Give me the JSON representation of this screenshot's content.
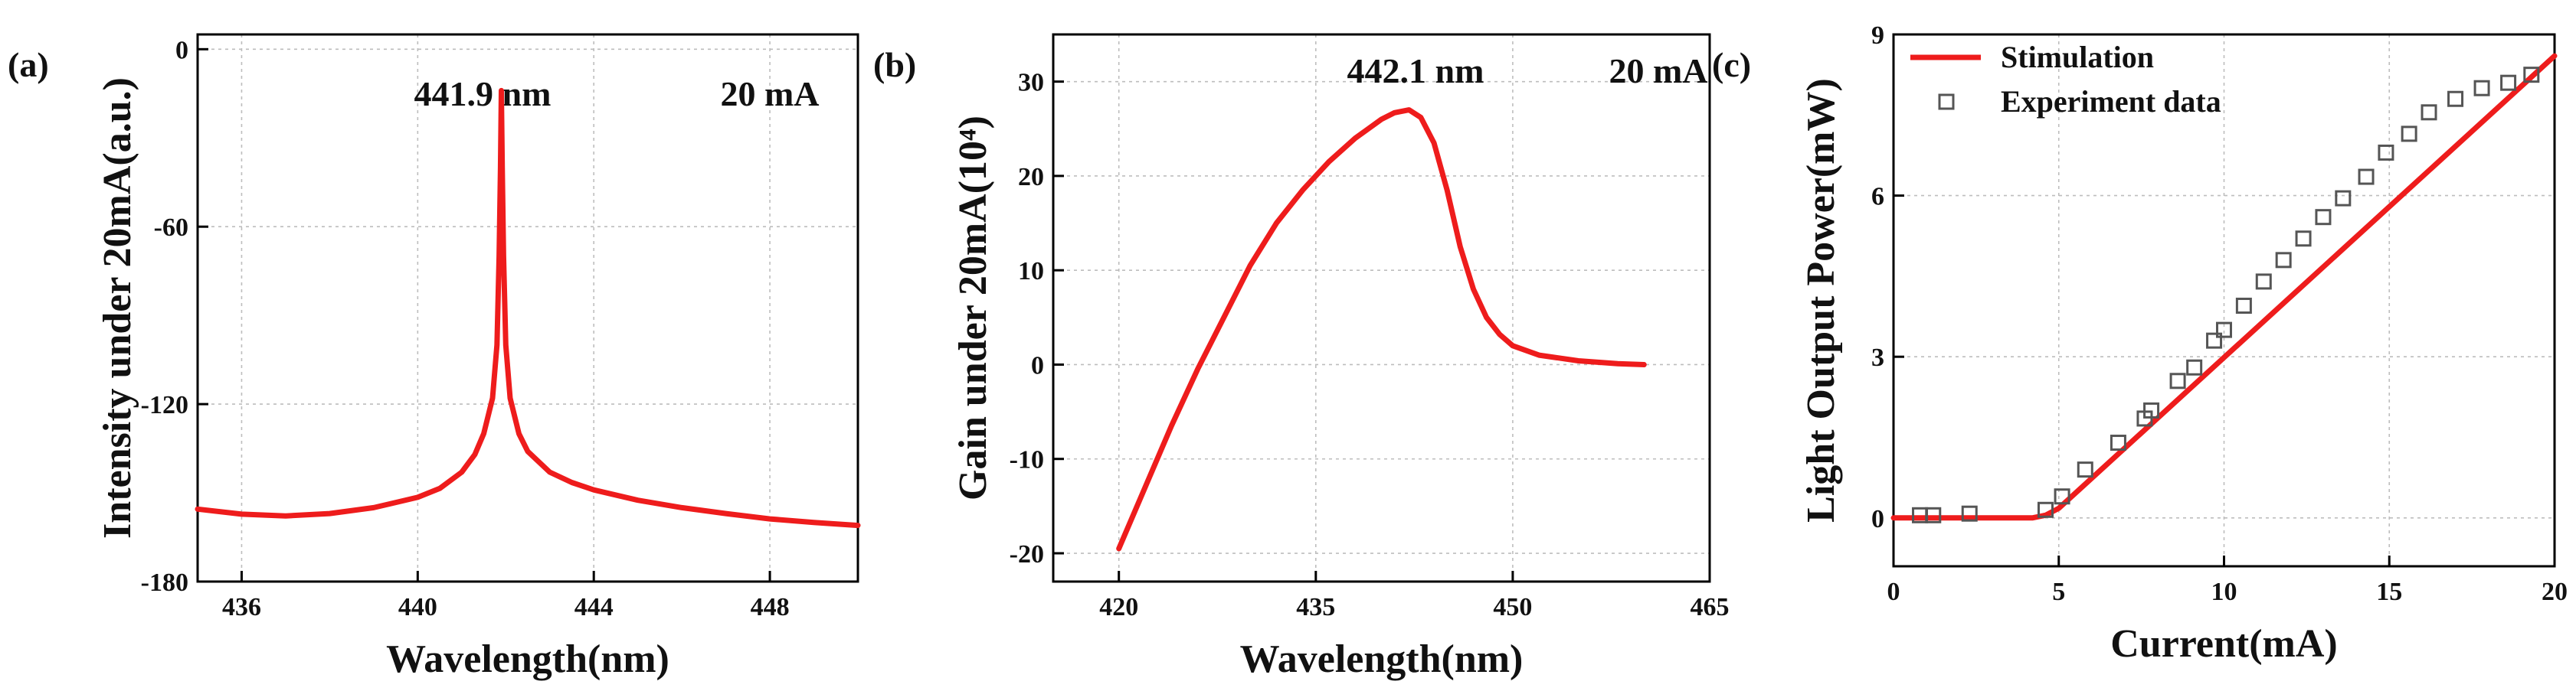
{
  "chart_data": [
    {
      "type": "line",
      "panel_label": "(a)",
      "annotations": [
        "441.9 nm",
        "20 mA"
      ],
      "xlabel": "Wavelength(nm)",
      "ylabel": "Intensity under 20mA(a.u.)",
      "xlim": [
        435,
        450
      ],
      "ylim": [
        -180,
        5
      ],
      "xticks": [
        436,
        440,
        444,
        448
      ],
      "yticks": [
        0,
        -60,
        -120,
        -180
      ],
      "grid": true,
      "series": [
        {
          "name": "Intensity",
          "color": "#ee1c1c",
          "x": [
            435,
            436,
            437,
            438,
            439,
            440,
            440.5,
            441,
            441.3,
            441.5,
            441.7,
            441.8,
            441.85,
            441.88,
            441.9,
            441.92,
            441.95,
            442,
            442.1,
            442.3,
            442.5,
            443,
            443.5,
            444,
            445,
            446,
            447,
            448,
            449,
            450
          ],
          "y": [
            -155.5,
            -157.2,
            -157.8,
            -157,
            -155,
            -151.5,
            -148.5,
            -143,
            -137,
            -130,
            -118,
            -100,
            -70,
            -40,
            -14,
            -40,
            -70,
            -100,
            -118,
            -130,
            -136,
            -143,
            -146.5,
            -149,
            -152.5,
            -155,
            -157,
            -158.8,
            -160,
            -161
          ]
        }
      ]
    },
    {
      "type": "line",
      "panel_label": "(b)",
      "annotations": [
        "442.1 nm",
        "20 mA"
      ],
      "xlabel": "Wavelength(nm)",
      "ylabel": "Gain under 20mA(10⁴)",
      "xlim": [
        415,
        465
      ],
      "ylim": [
        -23,
        35
      ],
      "xticks": [
        420,
        435,
        450,
        465
      ],
      "yticks": [
        -20,
        -10,
        0,
        10,
        20,
        30
      ],
      "grid": true,
      "series": [
        {
          "name": "Gain",
          "color": "#ee1c1c",
          "x": [
            420,
            422,
            424,
            426,
            428,
            430,
            432,
            434,
            436,
            438,
            440,
            441,
            442.1,
            443,
            444,
            445,
            446,
            447,
            448,
            449,
            450,
            452,
            455,
            458,
            460
          ],
          "y": [
            -19.5,
            -13,
            -6.5,
            -0.5,
            5,
            10.5,
            15,
            18.5,
            21.5,
            24,
            26,
            26.7,
            27,
            26.2,
            23.5,
            18.5,
            12.5,
            8,
            5,
            3.2,
            2,
            1,
            0.4,
            0.1,
            0
          ]
        }
      ]
    },
    {
      "type": "line",
      "panel_label": "(c)",
      "xlabel": "Current(mA)",
      "ylabel": "Light Output Power(mW)",
      "xlim": [
        0,
        20
      ],
      "ylim": [
        -0.9,
        9
      ],
      "xticks": [
        0,
        5,
        10,
        15,
        20
      ],
      "yticks": [
        0,
        3,
        6,
        9
      ],
      "grid": true,
      "legend": [
        "Stimulation",
        "Experiment data"
      ],
      "legend_location": "top-left",
      "series": [
        {
          "name": "Stimulation",
          "color": "#ee1c1c",
          "kind": "line",
          "x": [
            0,
            4.2,
            4.6,
            5,
            20
          ],
          "y": [
            0,
            0,
            0.05,
            0.18,
            8.6
          ]
        },
        {
          "name": "Experiment data",
          "color": "#555555",
          "kind": "scatter",
          "x": [
            0.8,
            1.2,
            2.3,
            4.6,
            5.1,
            5.8,
            6.8,
            7.6,
            7.8,
            8.6,
            9.1,
            9.7,
            10.0,
            10.6,
            11.2,
            11.8,
            12.4,
            13.0,
            13.6,
            14.3,
            14.9,
            15.6,
            16.2,
            17.0,
            17.8,
            18.6,
            19.3
          ],
          "y": [
            0.05,
            0.05,
            0.08,
            0.15,
            0.4,
            0.9,
            1.4,
            1.85,
            2.0,
            2.55,
            2.8,
            3.3,
            3.5,
            3.95,
            4.4,
            4.8,
            5.2,
            5.6,
            5.95,
            6.35,
            6.8,
            7.15,
            7.55,
            7.8,
            8.0,
            8.1,
            8.25
          ]
        }
      ]
    }
  ]
}
